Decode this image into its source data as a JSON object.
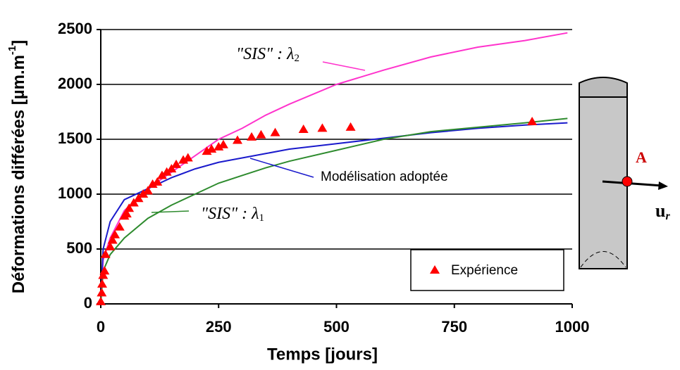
{
  "chart_data": {
    "type": "line",
    "x_label": "Temps [jours]",
    "y_label": {
      "text": "Déformations différées [µm.m",
      "sup": "-1",
      "suffix": "]"
    },
    "xlim": [
      0,
      1000
    ],
    "xticks": [
      0,
      250,
      500,
      750,
      1000
    ],
    "ylim": [
      0,
      2500
    ],
    "yticks": [
      0,
      500,
      1000,
      1500,
      2000,
      2500
    ],
    "grid": true,
    "legend": "lower right",
    "series": [
      {
        "color": "#ff33cc",
        "kind": "line",
        "x": [
          0,
          5,
          20,
          50,
          100,
          150,
          200,
          250,
          300,
          350,
          400,
          500,
          600,
          700,
          800,
          900,
          990
        ],
        "values": [
          0,
          400,
          600,
          850,
          1050,
          1200,
          1350,
          1500,
          1600,
          1720,
          1820,
          2000,
          2130,
          2250,
          2340,
          2400,
          2470
        ]
      },
      {
        "color": "#1a1acc",
        "kind": "line",
        "x": [
          0,
          5,
          20,
          50,
          100,
          150,
          200,
          250,
          300,
          350,
          400,
          500,
          600,
          700,
          800,
          900,
          990
        ],
        "values": [
          0,
          500,
          750,
          950,
          1050,
          1150,
          1230,
          1290,
          1330,
          1370,
          1410,
          1460,
          1510,
          1560,
          1600,
          1630,
          1650
        ]
      },
      {
        "color": "#2e8b2e",
        "kind": "line",
        "x": [
          0,
          5,
          20,
          50,
          100,
          150,
          200,
          250,
          300,
          350,
          400,
          500,
          600,
          700,
          800,
          900,
          990
        ],
        "values": [
          0,
          300,
          450,
          600,
          780,
          900,
          1000,
          1100,
          1170,
          1240,
          1300,
          1400,
          1500,
          1570,
          1610,
          1650,
          1690
        ]
      },
      {
        "name": "Expérience",
        "color": "#ff0000",
        "kind": "scatter",
        "x": [
          0,
          2,
          3,
          5,
          8,
          10,
          20,
          25,
          30,
          40,
          50,
          55,
          60,
          70,
          80,
          90,
          100,
          110,
          120,
          130,
          140,
          150,
          160,
          175,
          185,
          225,
          235,
          250,
          260,
          290,
          320,
          340,
          370,
          430,
          470,
          530,
          915
        ],
        "values": [
          20,
          100,
          180,
          260,
          300,
          450,
          520,
          580,
          630,
          700,
          800,
          820,
          870,
          920,
          960,
          1000,
          1030,
          1090,
          1110,
          1170,
          1200,
          1230,
          1270,
          1310,
          1330,
          1390,
          1410,
          1430,
          1450,
          1490,
          1520,
          1540,
          1560,
          1590,
          1600,
          1610,
          1660
        ]
      }
    ],
    "annotations": [
      {
        "text": "\"SIS\" : λ",
        "sub": "2"
      },
      {
        "text": "Modélisation adoptée"
      },
      {
        "text": "\"SIS\" : λ",
        "sub": "1"
      }
    ],
    "diagram": {
      "point": "A",
      "vector": "u",
      "vector_sub": "r"
    }
  }
}
